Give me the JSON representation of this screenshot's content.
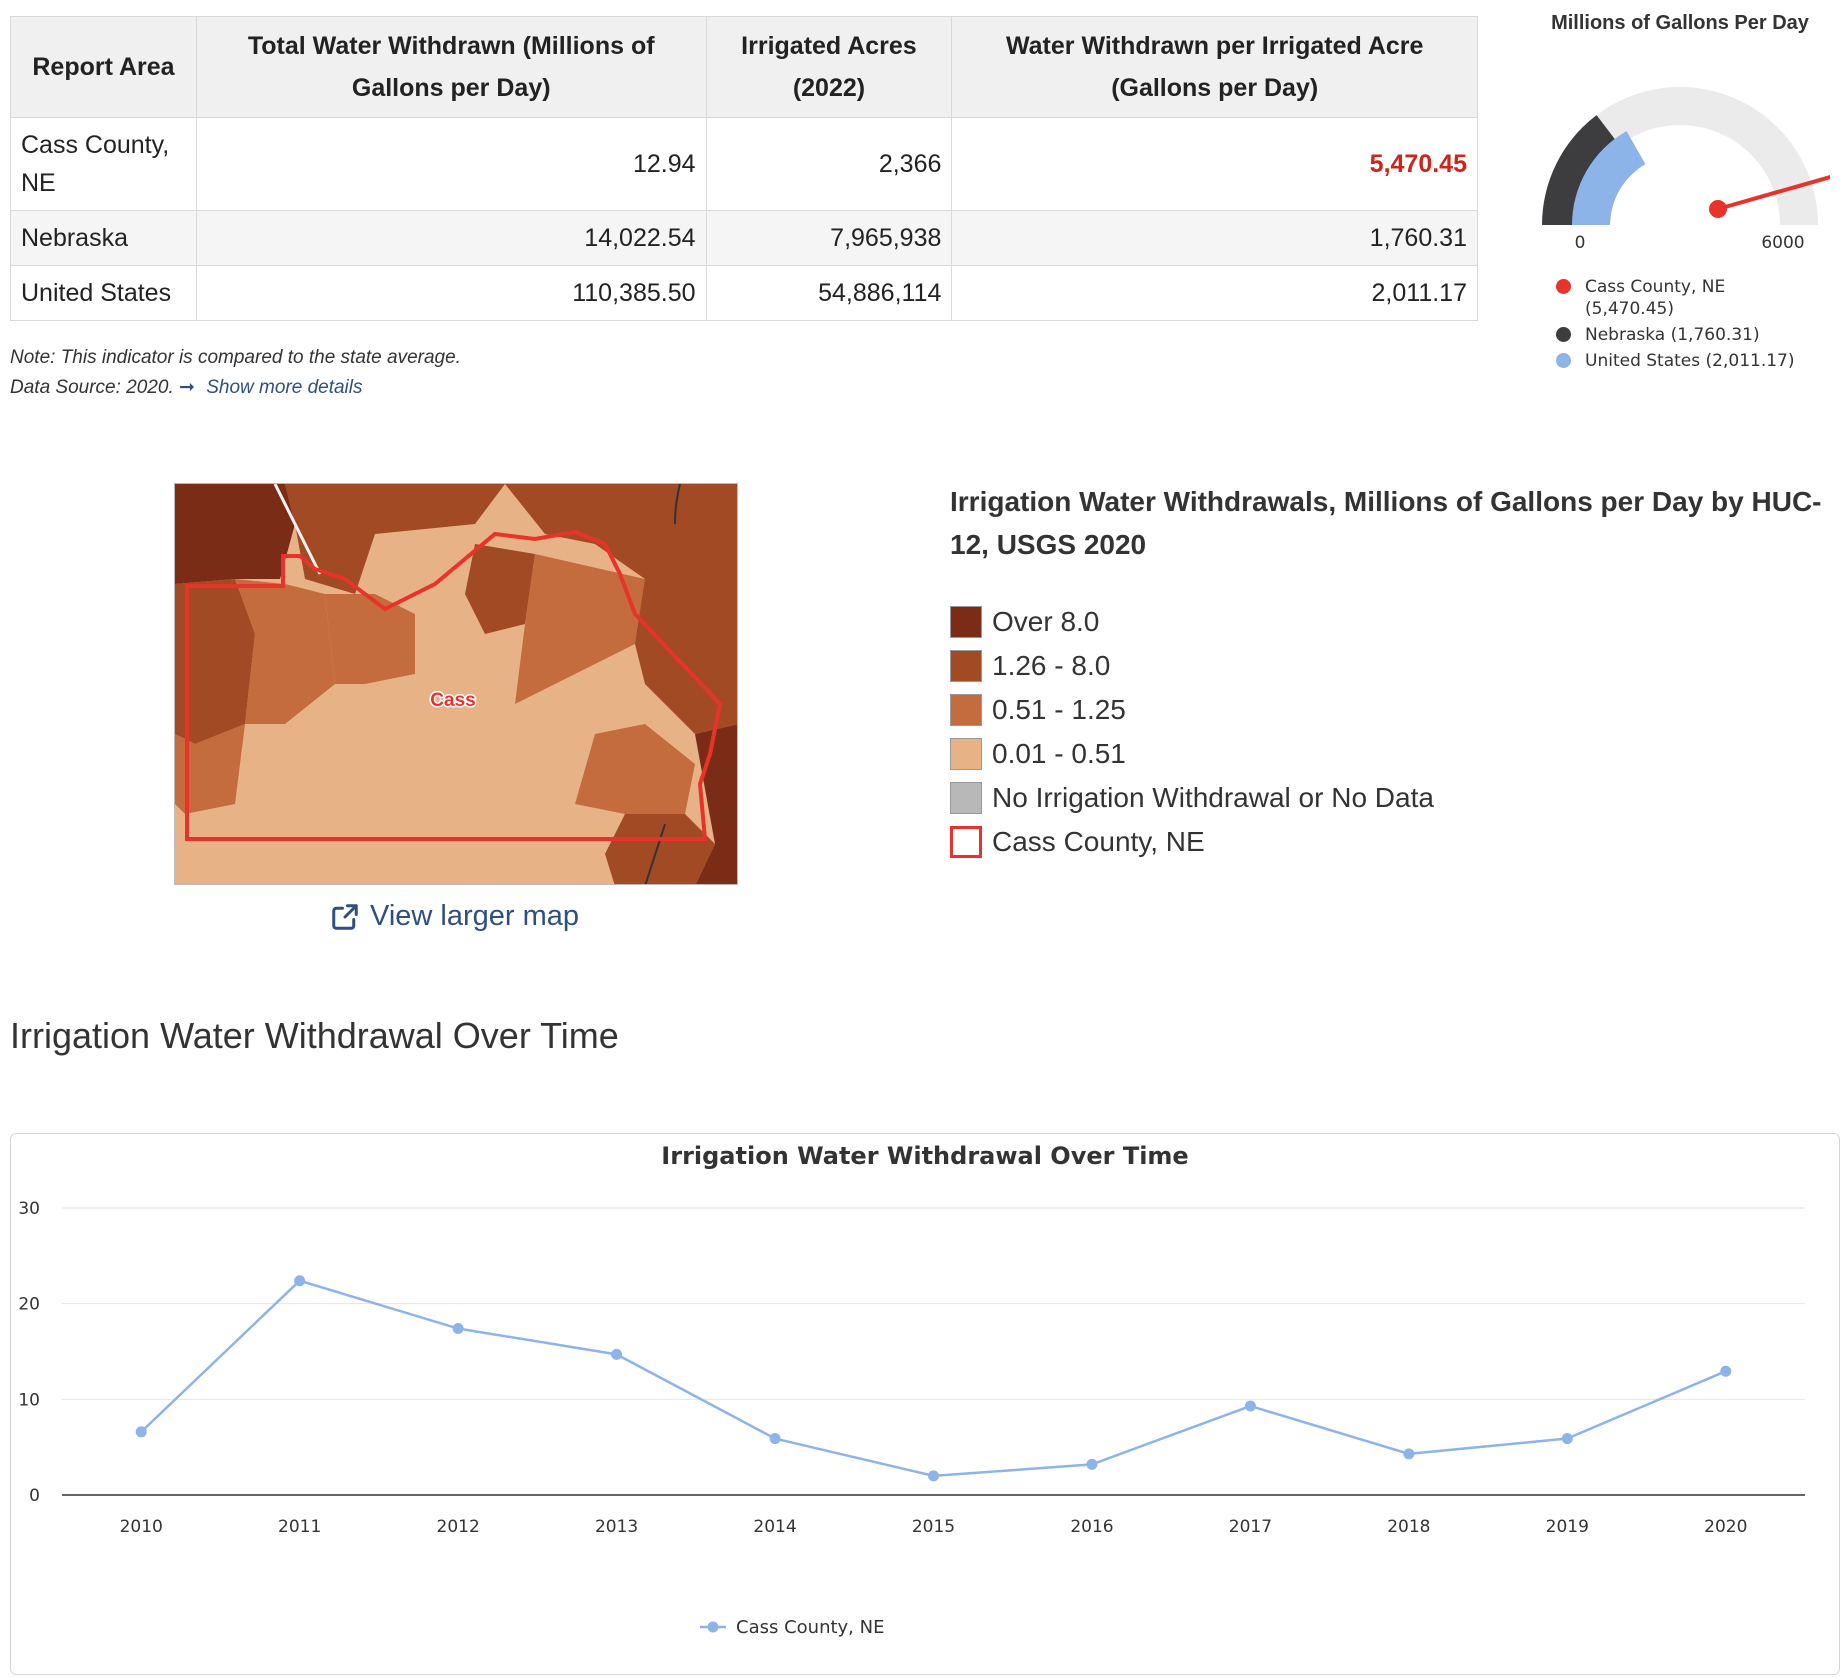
{
  "table": {
    "headers": [
      "Report Area",
      "Total Water Withdrawn (Millions of Gallons per Day)",
      "Irrigated Acres (2022)",
      "Water Withdrawn per Irrigated Acre (Gallons per Day)"
    ],
    "rows": [
      {
        "area": "Cass County, NE",
        "total": "12.94",
        "acres": "2,366",
        "per_acre": "5,470.45"
      },
      {
        "area": "Nebraska",
        "total": "14,022.54",
        "acres": "7,965,938",
        "per_acre": "1,760.31"
      },
      {
        "area": "United States",
        "total": "110,385.50",
        "acres": "54,886,114",
        "per_acre": "2,011.17"
      }
    ]
  },
  "note": {
    "text": "Note: This indicator is compared to the state average.",
    "source": "Data Source: 2020.",
    "details_link": "Show more details"
  },
  "gauge": {
    "title": "Millions of Gallons Per Day",
    "min_label": "0",
    "max_label": "6000",
    "max": 6000,
    "items": [
      {
        "label": "Cass County, NE",
        "value_label": "(5,470.45)",
        "value": 5470.45,
        "color": "#e8332b"
      },
      {
        "label": "Nebraska",
        "value_label": "(1,760.31)",
        "value": 1760.31,
        "color": "#3d3d40"
      },
      {
        "label": "United States",
        "value_label": "(2,011.17)",
        "value": 2011.17,
        "color": "#8cb4e8"
      }
    ]
  },
  "map": {
    "county_label": "Cass",
    "view_larger": "View larger map",
    "legend_title": "Irrigation Water Withdrawals, Millions of Gallons per Day by HUC-12, USGS 2020",
    "legend": [
      {
        "label": "Over 8.0",
        "color": "#7b2c17"
      },
      {
        "label": "1.26 - 8.0",
        "color": "#a24a24"
      },
      {
        "label": "0.51 - 1.25",
        "color": "#c56c3f"
      },
      {
        "label": "0.01 - 0.51",
        "color": "#e8b287"
      },
      {
        "label": "No Irrigation Withdrawal or No Data",
        "color": "#b8b8b8"
      },
      {
        "label": "Cass County, NE",
        "color": "#e8332b"
      }
    ]
  },
  "section_title": "Irrigation Water Withdrawal Over Time",
  "chart_data": {
    "type": "line",
    "title": "Irrigation Water Withdrawal Over Time",
    "categories": [
      "2010",
      "2011",
      "2012",
      "2013",
      "2014",
      "2015",
      "2016",
      "2017",
      "2018",
      "2019",
      "2020"
    ],
    "series": [
      {
        "name": "Cass County, NE",
        "values": [
          6.6,
          22.4,
          17.4,
          14.7,
          5.9,
          2.0,
          3.2,
          9.3,
          4.3,
          5.9,
          12.94
        ],
        "color": "#8cb4e8"
      }
    ],
    "yticks": [
      0,
      10,
      20,
      30
    ],
    "ylim": [
      0,
      30
    ],
    "grid": true,
    "legend_position": "bottom"
  }
}
